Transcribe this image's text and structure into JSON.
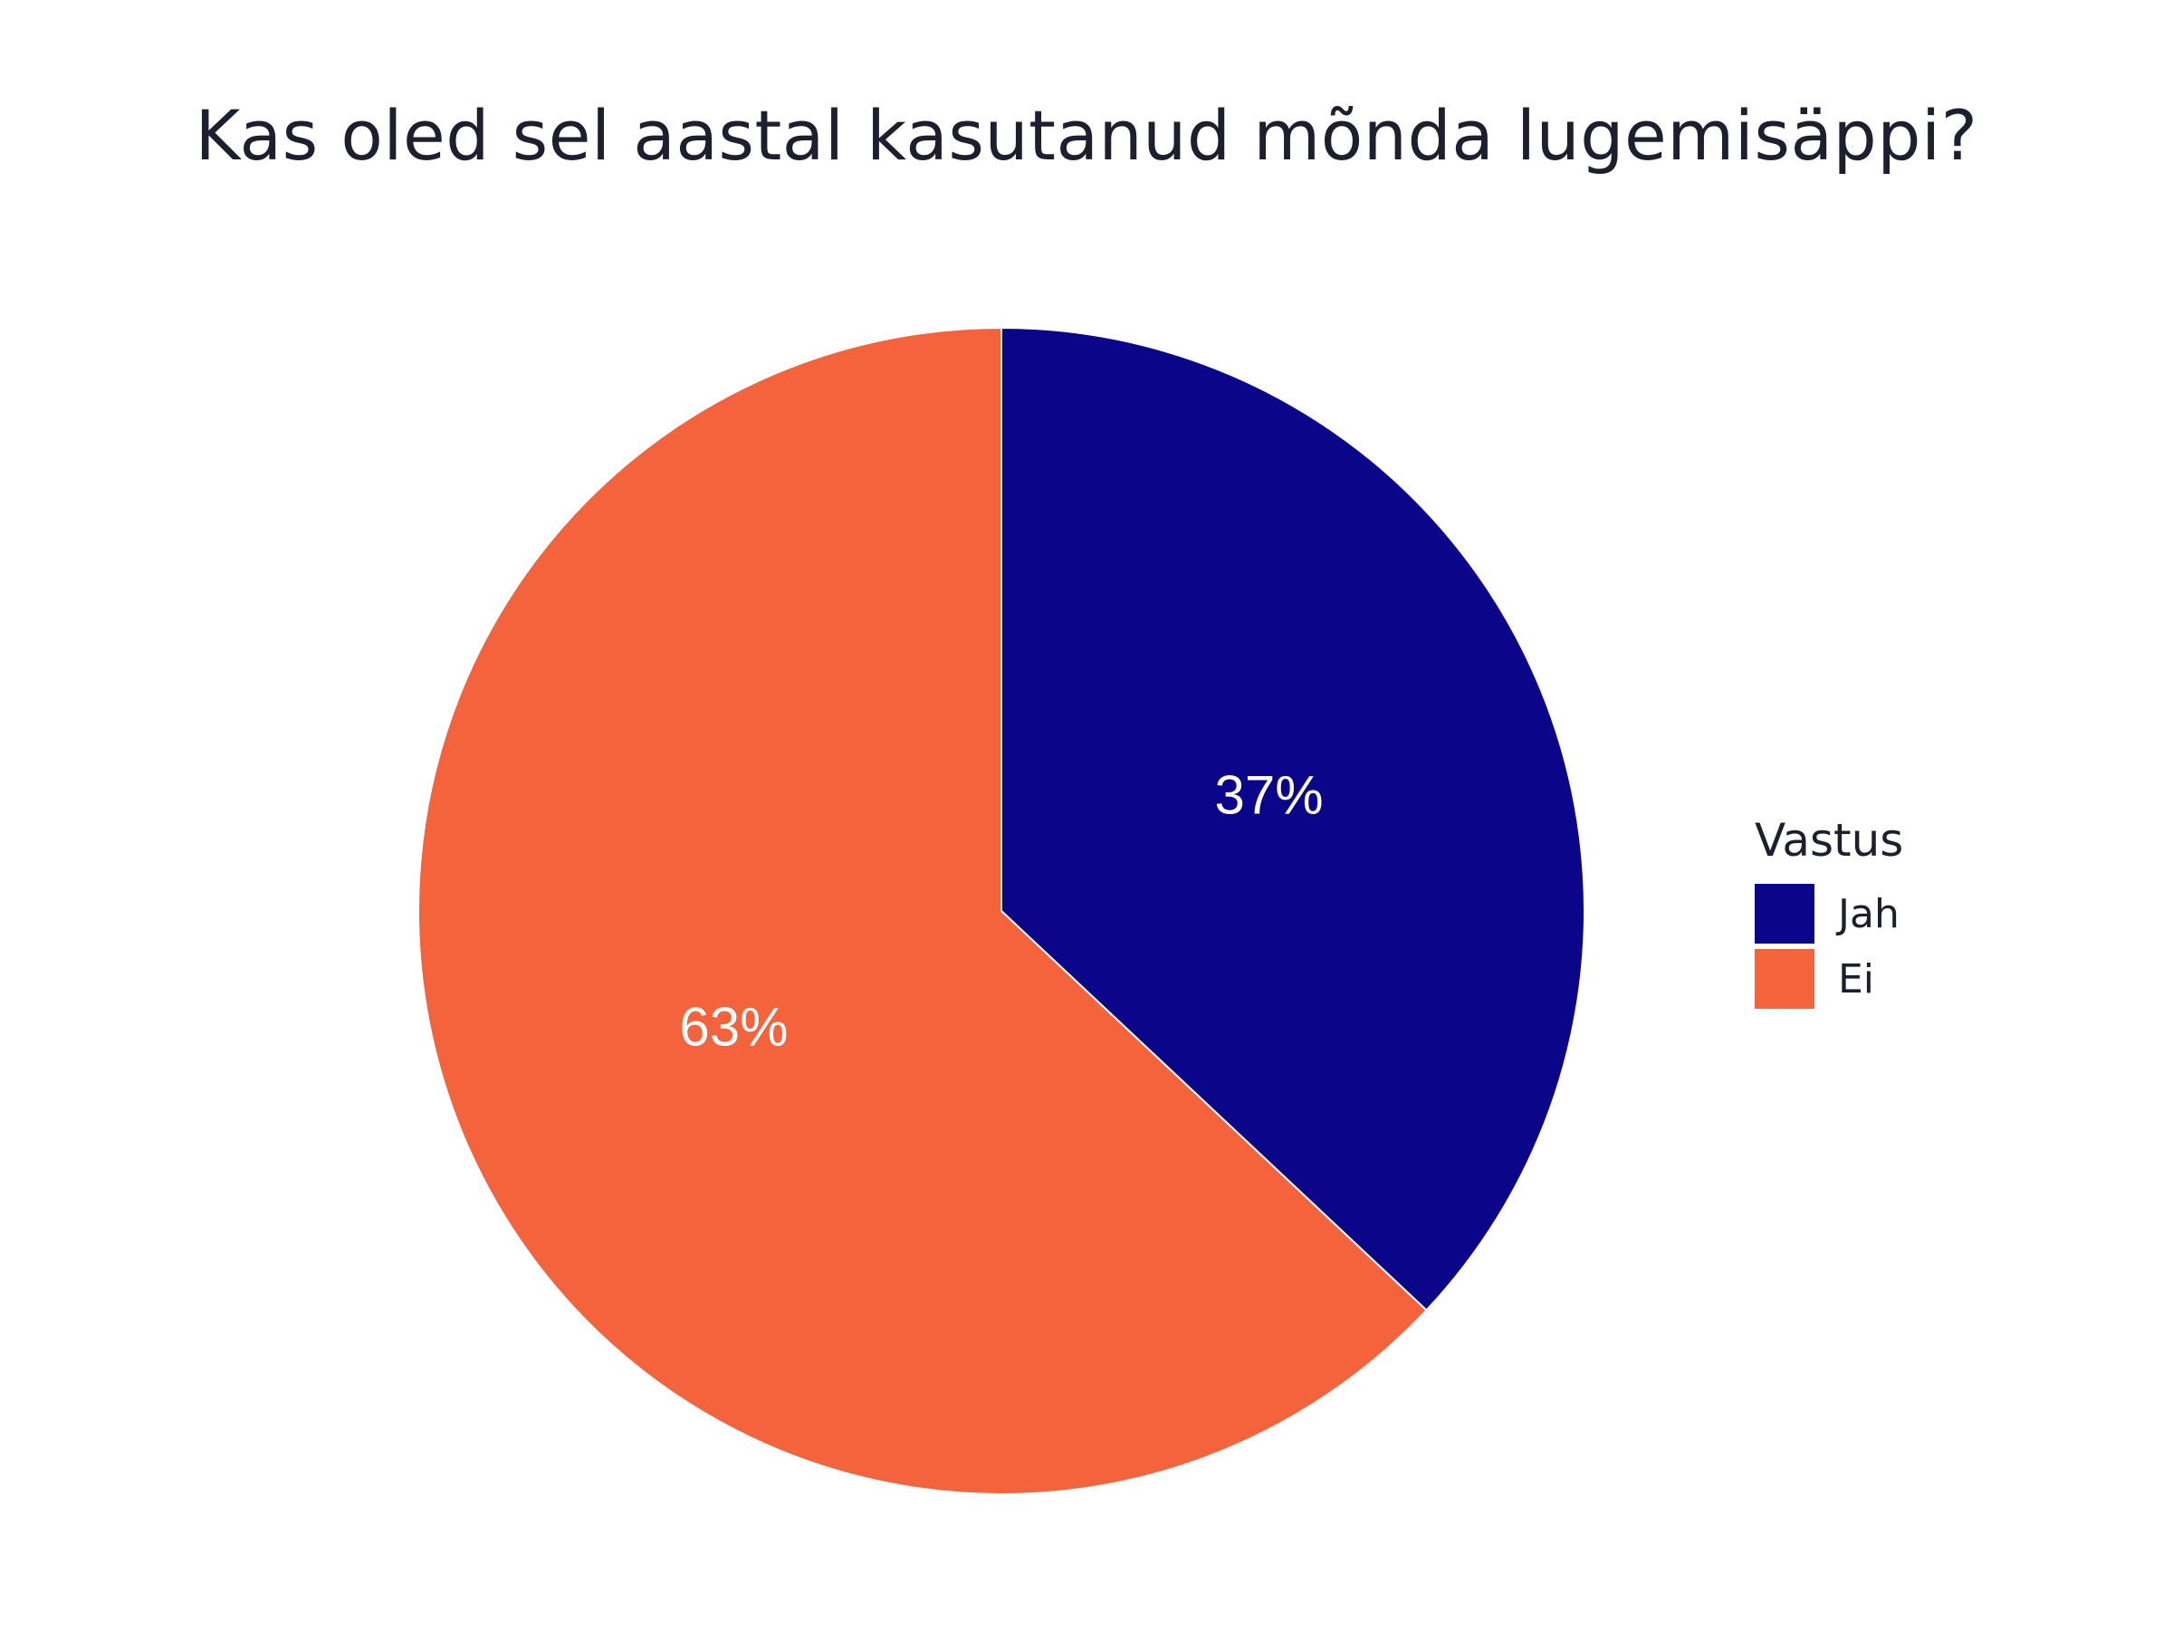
{
  "chart_data": {
    "type": "pie",
    "title": "Kas oled sel aastal kasutanud mõnda lugemisäppi?",
    "legend_title": "Vastus",
    "legend_position": "right",
    "slices": [
      {
        "label": "Jah",
        "value": 37,
        "display": "37%",
        "color": "#0a0589"
      },
      {
        "label": "Ei",
        "value": 63,
        "display": "63%",
        "color": "#f4633c"
      }
    ]
  }
}
